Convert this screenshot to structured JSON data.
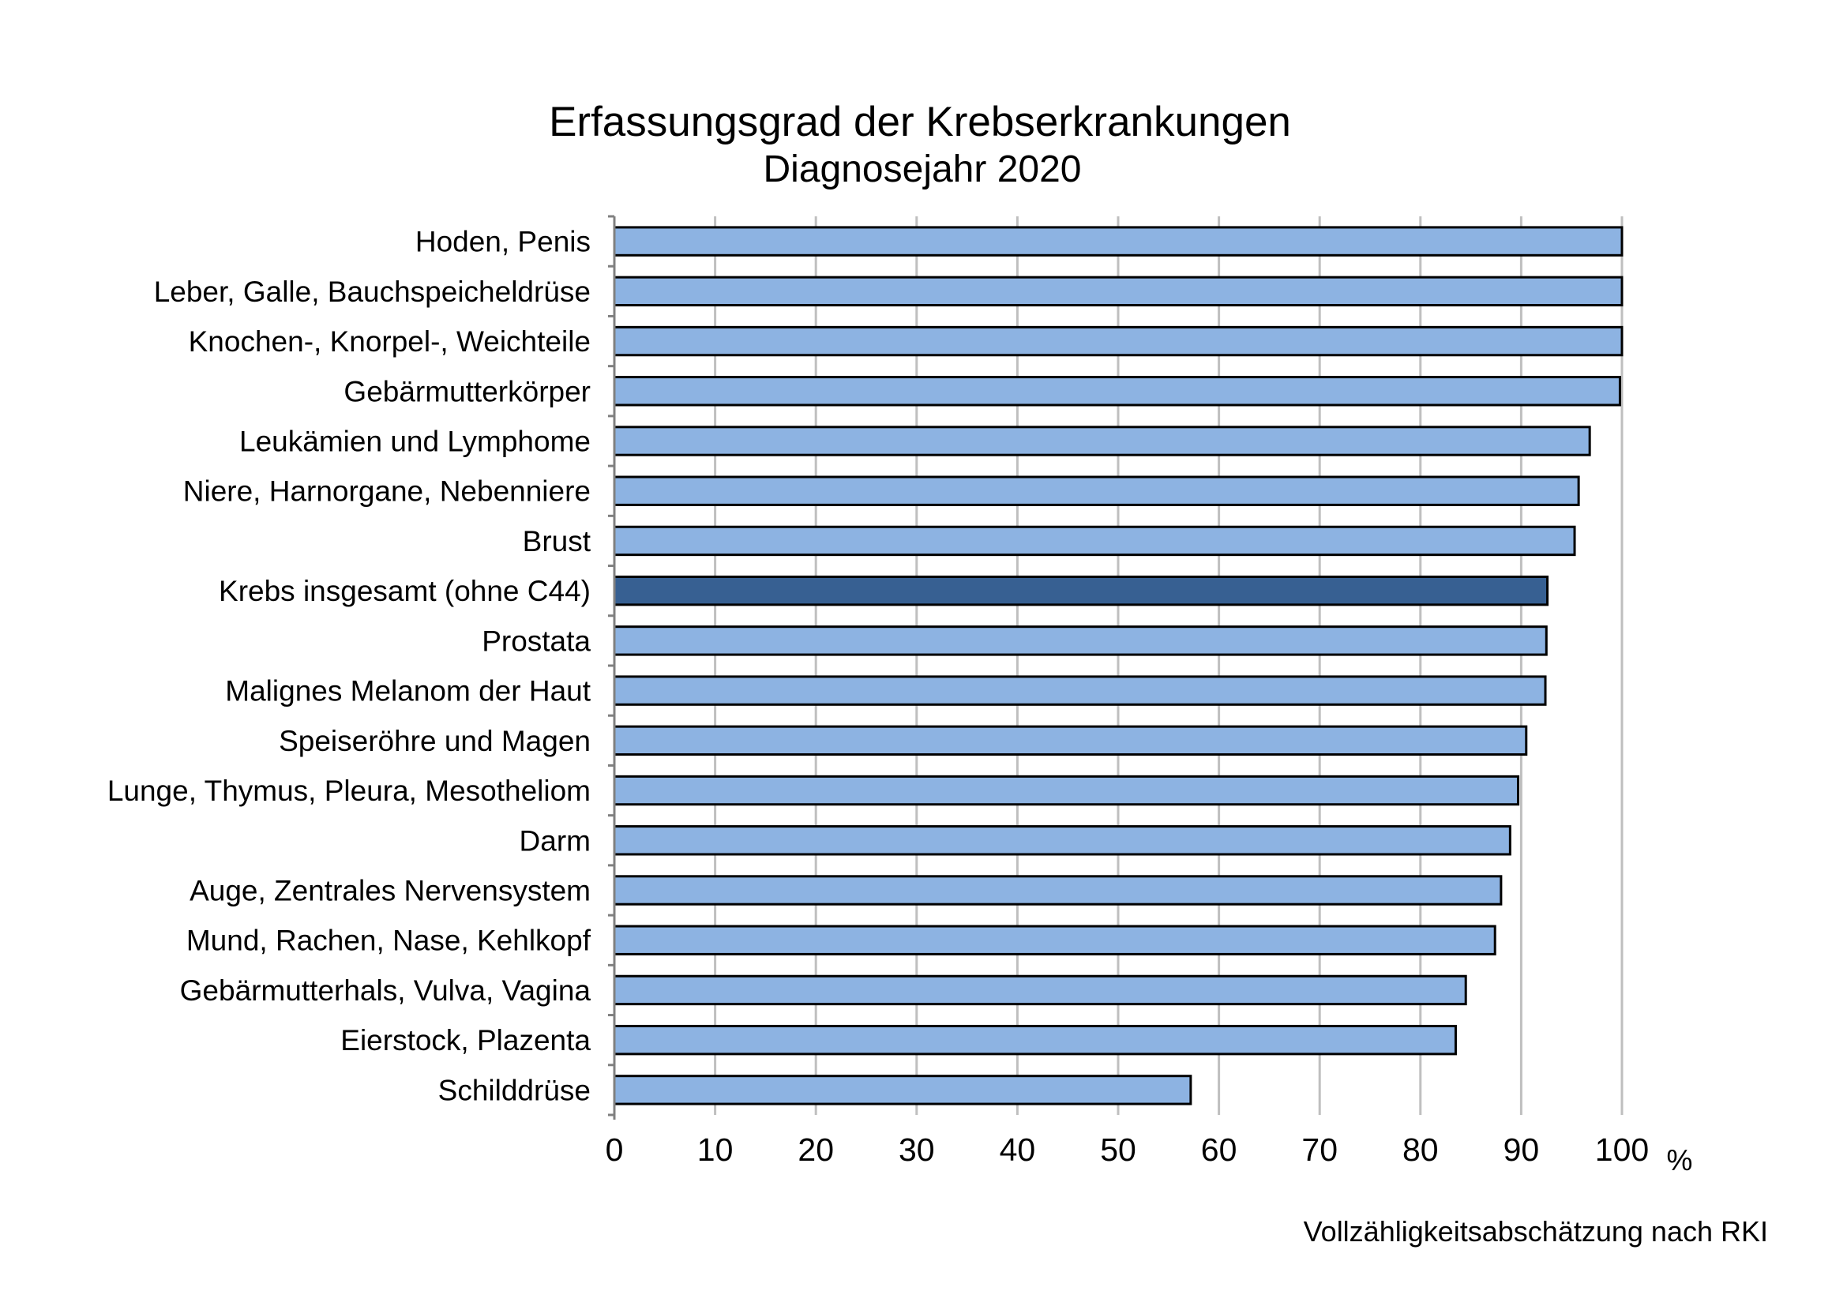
{
  "colors": {
    "bar": "#8DB3E2",
    "bar_highlight": "#376092",
    "bar_border": "#000000",
    "grid": "#BFBFBF",
    "axis": "#808080"
  },
  "chart_data": {
    "type": "bar",
    "orientation": "horizontal",
    "title": "Erfassungsgrad der Krebserkrankungen",
    "subtitle": "Diagnosejahr 2020",
    "xlabel": "%",
    "ylabel": "",
    "xlim": [
      0,
      100
    ],
    "xticks": [
      0,
      10,
      20,
      30,
      40,
      50,
      60,
      70,
      80,
      90,
      100
    ],
    "grid": "vertical",
    "source_note": "Vollzähligkeitsabschätzung nach RKI",
    "highlight_category": "Krebs insgesamt (ohne C44)",
    "categories": [
      "Hoden, Penis",
      "Leber, Galle, Bauchspeicheldrüse",
      "Knochen-, Knorpel-, Weichteile",
      "Gebärmutterkörper",
      "Leukämien und Lymphome",
      "Niere, Harnorgane, Nebenniere",
      "Brust",
      "Krebs insgesamt (ohne C44)",
      "Prostata",
      "Malignes Melanom der Haut",
      "Speiseröhre und Magen",
      "Lunge, Thymus, Pleura, Mesotheliom",
      "Darm",
      "Auge, Zentrales Nervensystem",
      "Mund, Rachen, Nase, Kehlkopf",
      "Gebärmutterhals, Vulva, Vagina",
      "Eierstock, Plazenta",
      "Schilddrüse"
    ],
    "values": [
      100,
      100,
      100,
      99.8,
      96.8,
      95.7,
      95.3,
      92.6,
      92.5,
      92.4,
      90.5,
      89.7,
      88.9,
      88.0,
      87.4,
      84.5,
      83.5,
      57.2
    ]
  }
}
